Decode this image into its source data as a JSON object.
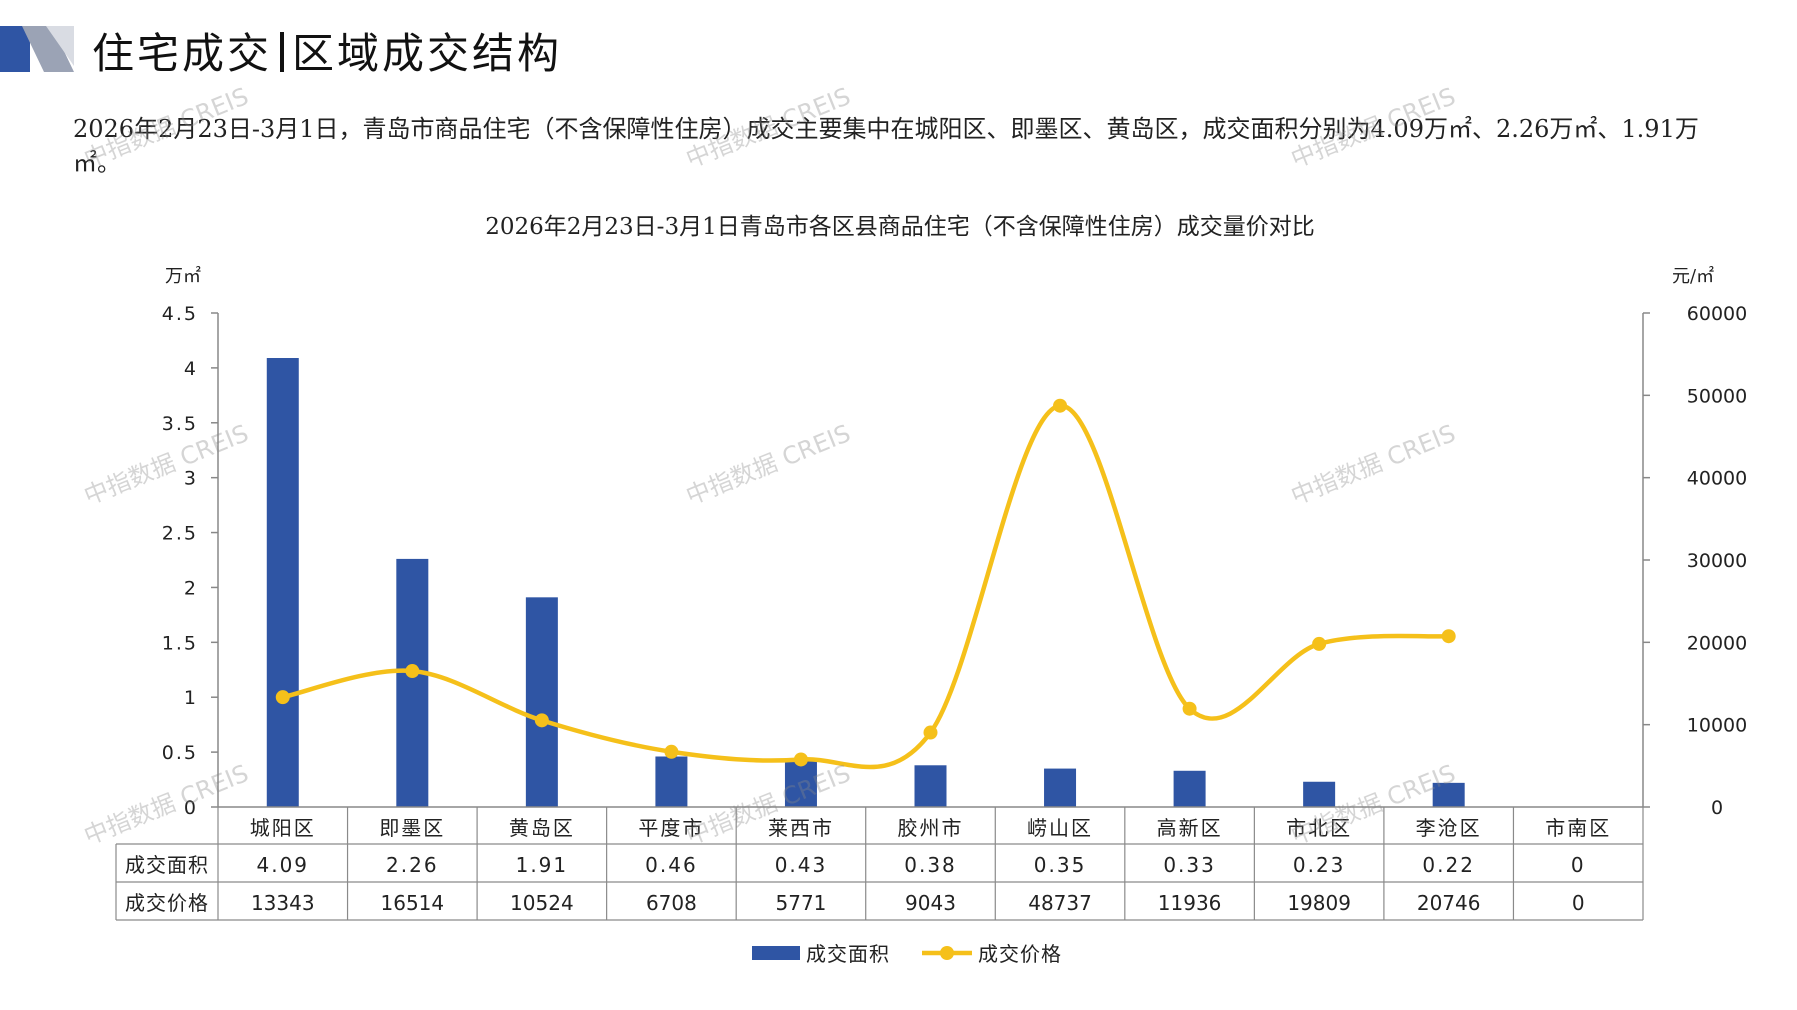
{
  "header": {
    "title_left": "住宅成交",
    "title_right": "区域成交结构"
  },
  "summary": "2026年2月23日-3月1日，青岛市商品住宅（不含保障性住房）成交主要集中在城阳区、即墨区、黄岛区，成交面积分别为4.09万㎡、2.26万㎡、1.91万㎡。",
  "watermark": "中指数据 CREIS",
  "colors": {
    "bar": "#2f55a4",
    "line": "#f5c01a",
    "axis": "#888888",
    "text": "#222222"
  },
  "chart_data": {
    "type": "bar",
    "title": "2026年2月23日-3月1日青岛市各区县商品住宅（不含保障性住房）成交量价对比",
    "y_left_unit": "万㎡",
    "y_right_unit": "元/㎡",
    "y_left_range": [
      0,
      4.5
    ],
    "y_left_ticks": [
      "0",
      "0.5",
      "1",
      "1.5",
      "2",
      "2.5",
      "3",
      "3.5",
      "4",
      "4.5"
    ],
    "y_right_range": [
      0,
      60000
    ],
    "y_right_ticks": [
      "0",
      "10000",
      "20000",
      "30000",
      "40000",
      "50000",
      "60000"
    ],
    "categories": [
      "城阳区",
      "即墨区",
      "黄岛区",
      "平度市",
      "莱西市",
      "胶州市",
      "崂山区",
      "高新区",
      "市北区",
      "李沧区",
      "市南区"
    ],
    "series": [
      {
        "name": "成交面积",
        "type": "bar",
        "axis": "left",
        "values": [
          4.09,
          2.26,
          1.91,
          0.46,
          0.43,
          0.38,
          0.35,
          0.33,
          0.23,
          0.22,
          0
        ]
      },
      {
        "name": "成交价格",
        "type": "line",
        "axis": "right",
        "values": [
          13343,
          16514,
          10524,
          6708,
          5771,
          9043,
          48737,
          11936,
          19809,
          20746,
          0
        ]
      }
    ],
    "table_labels": [
      "4.09",
      "2.26",
      "1.91",
      "0.46",
      "0.43",
      "0.38",
      "0.35",
      "0.33",
      "0.23",
      "0.22",
      "0"
    ],
    "table_price_labels": [
      "13343",
      "16514",
      "10524",
      "6708",
      "5771",
      "9043",
      "48737",
      "11936",
      "19809",
      "20746",
      "0"
    ],
    "legend": [
      "成交面积",
      "成交价格"
    ],
    "legend_position": "bottom"
  }
}
